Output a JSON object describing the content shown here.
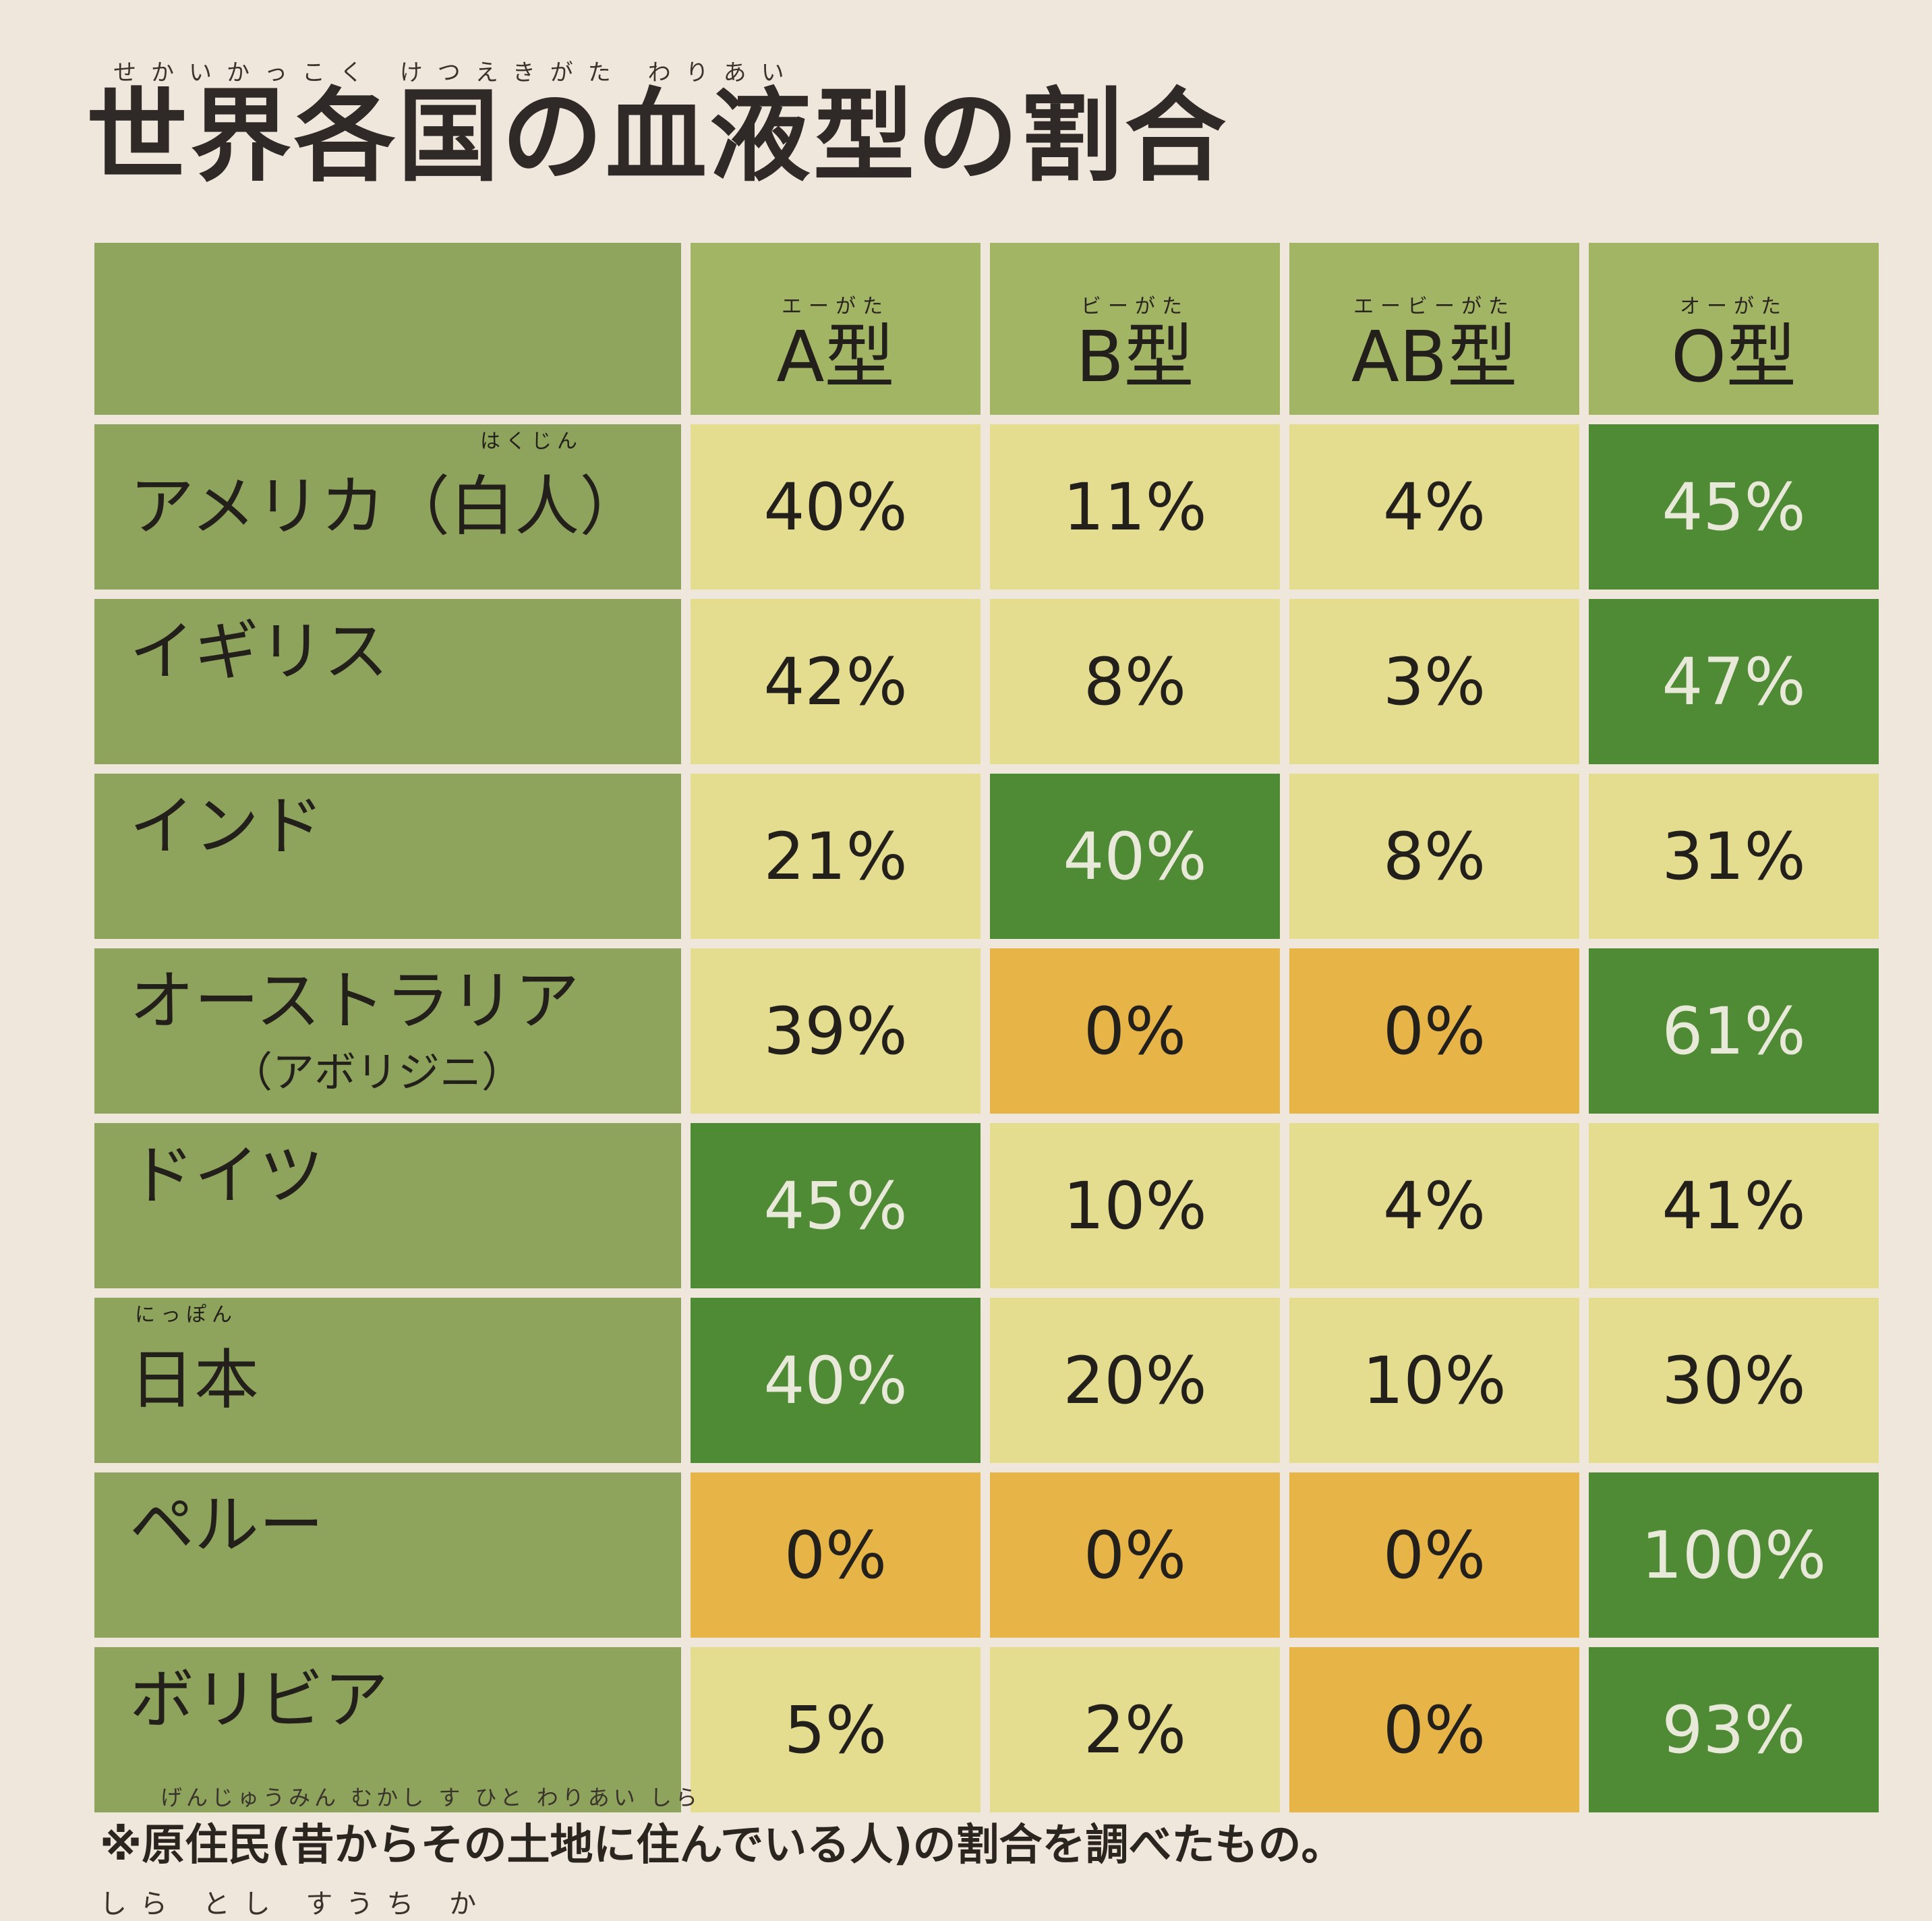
{
  "title": {
    "ruby": "せかいかっこく けつえきがた わりあい",
    "text": "世界各国の血液型の割合"
  },
  "columns": [
    {
      "ruby": "エーがた",
      "label": "A型"
    },
    {
      "ruby": "ビーがた",
      "label": "B型"
    },
    {
      "ruby": "エービーがた",
      "label": "AB型"
    },
    {
      "ruby": "オーがた",
      "label": "O型"
    }
  ],
  "rows": [
    {
      "ruby": "はくじん",
      "country": "アメリカ（白人）",
      "sub": "",
      "values": [
        "40%",
        "11%",
        "4%",
        "45%"
      ],
      "styles": [
        "light",
        "light",
        "light",
        "green"
      ]
    },
    {
      "ruby": "",
      "country": "イギリス",
      "sub": "",
      "values": [
        "42%",
        "8%",
        "3%",
        "47%"
      ],
      "styles": [
        "light",
        "light",
        "light",
        "green"
      ]
    },
    {
      "ruby": "",
      "country": "インド",
      "sub": "",
      "values": [
        "21%",
        "40%",
        "8%",
        "31%"
      ],
      "styles": [
        "light",
        "green",
        "light",
        "light"
      ]
    },
    {
      "ruby": "",
      "country": "オーストラリア",
      "sub": "（アボリジニ）",
      "values": [
        "39%",
        "0%",
        "0%",
        "61%"
      ],
      "styles": [
        "light",
        "orange",
        "orange",
        "green"
      ]
    },
    {
      "ruby": "",
      "country": "ドイツ",
      "sub": "",
      "values": [
        "45%",
        "10%",
        "4%",
        "41%"
      ],
      "styles": [
        "green",
        "light",
        "light",
        "light"
      ]
    },
    {
      "ruby": "にっぽん",
      "country": "日本",
      "sub": "",
      "values": [
        "40%",
        "20%",
        "10%",
        "30%"
      ],
      "styles": [
        "green",
        "light",
        "light",
        "light"
      ]
    },
    {
      "ruby": "",
      "country": "ペルー",
      "sub": "",
      "values": [
        "0%",
        "0%",
        "0%",
        "100%"
      ],
      "styles": [
        "orange",
        "orange",
        "orange",
        "green"
      ]
    },
    {
      "ruby": "",
      "country": "ボリビア",
      "sub": "",
      "values": [
        "5%",
        "2%",
        "0%",
        "93%"
      ],
      "styles": [
        "light",
        "light",
        "orange",
        "green"
      ]
    }
  ],
  "note": {
    "ruby": "げんじゅうみん むかし す ひと わりあい しら",
    "text": "※原住民(昔からその土地に住んでいる人)の割合を調べたもの。"
  },
  "note2": {
    "text": "しら とし すうち か"
  },
  "colors": {
    "header": "#a2b565",
    "row_header": "#8ea35b",
    "light": "#e4dc8f",
    "orange": "#e7b547",
    "green": "#4f8a35"
  }
}
